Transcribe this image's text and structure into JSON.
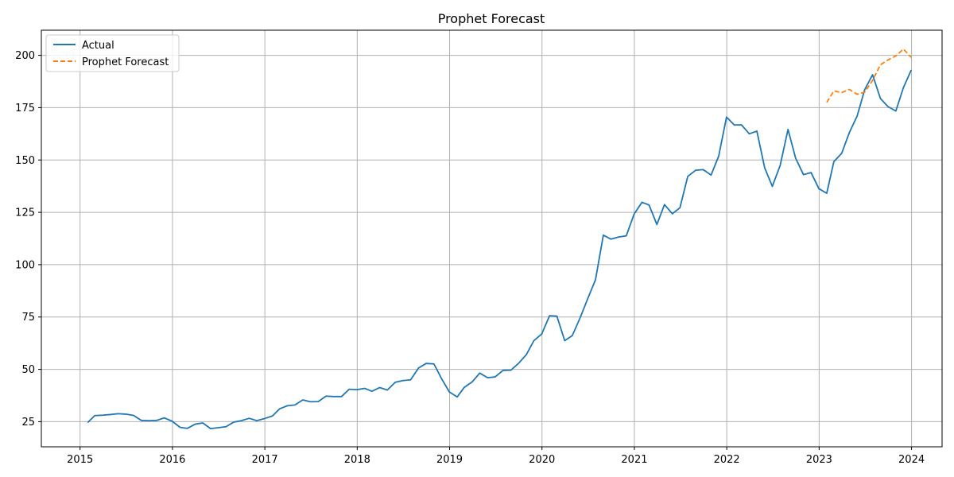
{
  "chart_data": {
    "type": "line",
    "title": "Prophet Forecast",
    "xlabel": "",
    "ylabel": "",
    "x_ticks": [
      "2015",
      "2016",
      "2017",
      "2018",
      "2019",
      "2020",
      "2021",
      "2022",
      "2023",
      "2024"
    ],
    "y_ticks": [
      25,
      50,
      75,
      100,
      125,
      150,
      175,
      200
    ],
    "xlim": [
      "2014-08",
      "2024-05"
    ],
    "ylim": [
      13,
      212
    ],
    "grid": true,
    "legend_position": "top-left",
    "series": [
      {
        "name": "Actual",
        "color": "#1f77b4",
        "style": "solid",
        "points": [
          [
            "2015-01-31",
            24.6
          ],
          [
            "2015-02-28",
            27.9
          ],
          [
            "2015-03-31",
            28.1
          ],
          [
            "2015-04-30",
            28.4
          ],
          [
            "2015-05-31",
            28.8
          ],
          [
            "2015-06-30",
            28.6
          ],
          [
            "2015-07-31",
            28.0
          ],
          [
            "2015-08-31",
            25.6
          ],
          [
            "2015-09-30",
            25.5
          ],
          [
            "2015-10-31",
            25.6
          ],
          [
            "2015-11-30",
            26.8
          ],
          [
            "2015-12-31",
            25.2
          ],
          [
            "2016-01-31",
            22.3
          ],
          [
            "2016-02-29",
            21.8
          ],
          [
            "2016-03-31",
            23.8
          ],
          [
            "2016-04-30",
            24.4
          ],
          [
            "2016-05-31",
            21.7
          ],
          [
            "2016-06-30",
            22.1
          ],
          [
            "2016-07-31",
            22.6
          ],
          [
            "2016-08-31",
            24.8
          ],
          [
            "2016-09-30",
            25.5
          ],
          [
            "2016-10-31",
            26.6
          ],
          [
            "2016-11-30",
            25.5
          ],
          [
            "2016-12-31",
            26.5
          ],
          [
            "2017-01-31",
            27.7
          ],
          [
            "2017-02-28",
            31.1
          ],
          [
            "2017-03-31",
            32.6
          ],
          [
            "2017-04-30",
            33.0
          ],
          [
            "2017-05-31",
            35.4
          ],
          [
            "2017-06-30",
            34.5
          ],
          [
            "2017-07-31",
            34.6
          ],
          [
            "2017-08-31",
            37.2
          ],
          [
            "2017-09-30",
            37.0
          ],
          [
            "2017-10-31",
            37.0
          ],
          [
            "2017-11-30",
            40.5
          ],
          [
            "2017-12-31",
            40.3
          ],
          [
            "2018-01-31",
            40.9
          ],
          [
            "2018-02-28",
            39.5
          ],
          [
            "2018-03-31",
            41.3
          ],
          [
            "2018-04-30",
            40.1
          ],
          [
            "2018-05-31",
            43.8
          ],
          [
            "2018-06-30",
            44.6
          ],
          [
            "2018-07-31",
            45.0
          ],
          [
            "2018-08-31",
            50.6
          ],
          [
            "2018-09-30",
            52.8
          ],
          [
            "2018-10-31",
            52.6
          ],
          [
            "2018-11-30",
            45.6
          ],
          [
            "2018-12-31",
            39.2
          ],
          [
            "2019-01-31",
            36.8
          ],
          [
            "2019-02-28",
            41.4
          ],
          [
            "2019-03-31",
            44.0
          ],
          [
            "2019-04-30",
            48.2
          ],
          [
            "2019-05-31",
            46.0
          ],
          [
            "2019-06-30",
            46.4
          ],
          [
            "2019-07-31",
            49.5
          ],
          [
            "2019-08-31",
            49.6
          ],
          [
            "2019-09-30",
            52.8
          ],
          [
            "2019-10-31",
            57.0
          ],
          [
            "2019-11-30",
            63.7
          ],
          [
            "2019-12-31",
            66.9
          ],
          [
            "2020-01-31",
            75.6
          ],
          [
            "2020-02-29",
            75.4
          ],
          [
            "2020-03-31",
            63.7
          ],
          [
            "2020-04-30",
            66.1
          ],
          [
            "2020-05-31",
            74.6
          ],
          [
            "2020-06-30",
            83.7
          ],
          [
            "2020-07-31",
            92.8
          ],
          [
            "2020-08-31",
            114.1
          ],
          [
            "2020-09-30",
            112.2
          ],
          [
            "2020-10-31",
            113.2
          ],
          [
            "2020-11-30",
            113.8
          ],
          [
            "2020-12-31",
            124.2
          ],
          [
            "2021-01-31",
            129.8
          ],
          [
            "2021-02-28",
            128.5
          ],
          [
            "2021-03-31",
            119.2
          ],
          [
            "2021-04-30",
            128.7
          ],
          [
            "2021-05-31",
            124.3
          ],
          [
            "2021-06-30",
            127.2
          ],
          [
            "2021-07-31",
            142.2
          ],
          [
            "2021-08-31",
            145.1
          ],
          [
            "2021-09-30",
            145.4
          ],
          [
            "2021-10-31",
            142.8
          ],
          [
            "2021-11-30",
            151.8
          ],
          [
            "2021-12-31",
            170.5
          ],
          [
            "2022-01-31",
            166.7
          ],
          [
            "2022-02-28",
            166.8
          ],
          [
            "2022-03-31",
            162.5
          ],
          [
            "2022-04-30",
            163.8
          ],
          [
            "2022-05-31",
            146.2
          ],
          [
            "2022-06-30",
            137.4
          ],
          [
            "2022-07-31",
            147.4
          ],
          [
            "2022-08-31",
            164.6
          ],
          [
            "2022-09-30",
            150.9
          ],
          [
            "2022-10-31",
            143.0
          ],
          [
            "2022-11-30",
            144.0
          ],
          [
            "2022-12-31",
            136.3
          ],
          [
            "2023-01-31",
            134.1
          ],
          [
            "2023-02-28",
            149.2
          ],
          [
            "2023-03-31",
            153.2
          ],
          [
            "2023-04-30",
            163.0
          ],
          [
            "2023-05-31",
            171.0
          ],
          [
            "2023-06-30",
            183.6
          ],
          [
            "2023-07-31",
            190.7
          ],
          [
            "2023-08-31",
            179.4
          ],
          [
            "2023-09-30",
            175.5
          ],
          [
            "2023-10-31",
            173.4
          ],
          [
            "2023-11-30",
            184.6
          ],
          [
            "2023-12-31",
            193.0
          ]
        ]
      },
      {
        "name": "Prophet Forecast",
        "color": "#ff7f0e",
        "style": "dashed",
        "points": [
          [
            "2023-01-31",
            177.5
          ],
          [
            "2023-02-28",
            183.0
          ],
          [
            "2023-03-31",
            182.2
          ],
          [
            "2023-04-30",
            183.7
          ],
          [
            "2023-05-31",
            181.4
          ],
          [
            "2023-06-30",
            182.4
          ],
          [
            "2023-07-31",
            188.0
          ],
          [
            "2023-08-31",
            195.5
          ],
          [
            "2023-09-30",
            197.8
          ],
          [
            "2023-10-31",
            199.7
          ],
          [
            "2023-11-30",
            203.0
          ],
          [
            "2023-12-31",
            199.0
          ]
        ]
      }
    ]
  }
}
